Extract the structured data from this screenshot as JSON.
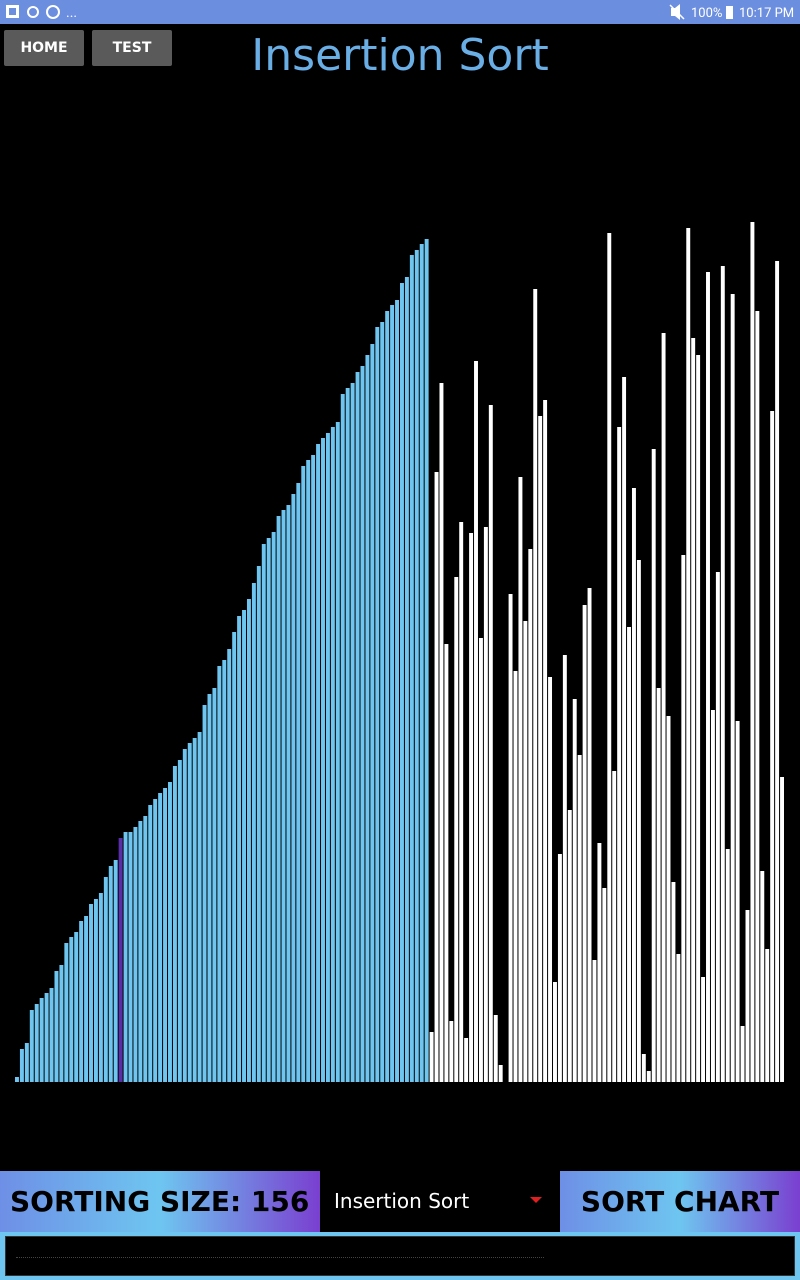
{
  "status": {
    "more": "...",
    "battery": "100%",
    "time": "10:17 PM"
  },
  "buttons": [
    "HOME",
    "TEST"
  ],
  "title": "Insertion Sort",
  "chart_data": {
    "type": "bar",
    "values": [
      5,
      33,
      39,
      72,
      78,
      84,
      89,
      94,
      111,
      117,
      139,
      145,
      150,
      161,
      166,
      178,
      183,
      189,
      205,
      216,
      222,
      244,
      250,
      250,
      255,
      261,
      266,
      277,
      283,
      289,
      294,
      300,
      316,
      322,
      333,
      339,
      344,
      350,
      377,
      388,
      394,
      416,
      422,
      433,
      450,
      466,
      472,
      483,
      499,
      516,
      538,
      544,
      550,
      566,
      572,
      577,
      588,
      599,
      616,
      622,
      627,
      638,
      644,
      649,
      655,
      660,
      688,
      694,
      699,
      710,
      716,
      727,
      738,
      755,
      760,
      771,
      777,
      782,
      799,
      805,
      827,
      832,
      838,
      843,
      50,
      610,
      699,
      438,
      61,
      505,
      560,
      44,
      549,
      721,
      444,
      555,
      677,
      67,
      17,
      0,
      488,
      411,
      605,
      461,
      533,
      793,
      666,
      682,
      405,
      100,
      228,
      427,
      272,
      383,
      327,
      477,
      494,
      122,
      239,
      194,
      849,
      311,
      655,
      705,
      455,
      594,
      522,
      28,
      11,
      633,
      394,
      749,
      366,
      200,
      128,
      527,
      854,
      744,
      727,
      105,
      810,
      372,
      510,
      816,
      233,
      788,
      361,
      56,
      172,
      860,
      771,
      211,
      133,
      671,
      821,
      305
    ],
    "colors": [
      "#6ec6f0",
      "#6ec6f0",
      "#6ec6f0",
      "#6ec6f0",
      "#6ec6f0",
      "#6ec6f0",
      "#6ec6f0",
      "#6ec6f0",
      "#6ec6f0",
      "#6ec6f0",
      "#6ec6f0",
      "#6ec6f0",
      "#6ec6f0",
      "#6ec6f0",
      "#6ec6f0",
      "#6ec6f0",
      "#6ec6f0",
      "#6ec6f0",
      "#6ec6f0",
      "#6ec6f0",
      "#6ec6f0",
      "#5a2ea6",
      "#6ec6f0",
      "#6ec6f0",
      "#6ec6f0",
      "#6ec6f0",
      "#6ec6f0",
      "#6ec6f0",
      "#6ec6f0",
      "#6ec6f0",
      "#6ec6f0",
      "#6ec6f0",
      "#6ec6f0",
      "#6ec6f0",
      "#6ec6f0",
      "#6ec6f0",
      "#6ec6f0",
      "#6ec6f0",
      "#6ec6f0",
      "#6ec6f0",
      "#6ec6f0",
      "#6ec6f0",
      "#6ec6f0",
      "#6ec6f0",
      "#6ec6f0",
      "#6ec6f0",
      "#6ec6f0",
      "#6ec6f0",
      "#6ec6f0",
      "#6ec6f0",
      "#6ec6f0",
      "#6ec6f0",
      "#6ec6f0",
      "#6ec6f0",
      "#6ec6f0",
      "#6ec6f0",
      "#6ec6f0",
      "#6ec6f0",
      "#6ec6f0",
      "#6ec6f0",
      "#6ec6f0",
      "#6ec6f0",
      "#6ec6f0",
      "#6ec6f0",
      "#6ec6f0",
      "#6ec6f0",
      "#6ec6f0",
      "#6ec6f0",
      "#6ec6f0",
      "#6ec6f0",
      "#6ec6f0",
      "#6ec6f0",
      "#6ec6f0",
      "#6ec6f0",
      "#6ec6f0",
      "#6ec6f0",
      "#6ec6f0",
      "#6ec6f0",
      "#6ec6f0",
      "#6ec6f0",
      "#6ec6f0",
      "#6ec6f0",
      "#6ec6f0",
      "#6ec6f0",
      "#ffffff",
      "#ffffff",
      "#ffffff",
      "#ffffff",
      "#ffffff",
      "#ffffff",
      "#ffffff",
      "#ffffff",
      "#ffffff",
      "#ffffff",
      "#ffffff",
      "#ffffff",
      "#ffffff",
      "#ffffff",
      "#ffffff",
      "#ffffff",
      "#ffffff",
      "#ffffff",
      "#ffffff",
      "#ffffff",
      "#ffffff",
      "#ffffff",
      "#ffffff",
      "#ffffff",
      "#ffffff",
      "#ffffff",
      "#ffffff",
      "#ffffff",
      "#ffffff",
      "#ffffff",
      "#ffffff",
      "#ffffff",
      "#ffffff",
      "#ffffff",
      "#ffffff",
      "#ffffff",
      "#ffffff",
      "#ffffff",
      "#ffffff",
      "#ffffff",
      "#ffffff",
      "#ffffff",
      "#ffffff",
      "#ffffff",
      "#ffffff",
      "#ffffff",
      "#ffffff",
      "#ffffff",
      "#ffffff",
      "#ffffff",
      "#ffffff",
      "#ffffff",
      "#ffffff",
      "#ffffff",
      "#ffffff",
      "#ffffff",
      "#ffffff",
      "#ffffff",
      "#ffffff",
      "#ffffff",
      "#ffffff",
      "#ffffff",
      "#ffffff",
      "#ffffff",
      "#ffffff",
      "#ffffff",
      "#ffffff",
      "#ffffff",
      "#ffffff",
      "#ffffff",
      "#ffffff",
      "#ffffff"
    ]
  },
  "controls": {
    "size_label": "SORTING SIZE: 156",
    "algorithm": "Insertion Sort",
    "sort_button": "SORT CHART"
  }
}
